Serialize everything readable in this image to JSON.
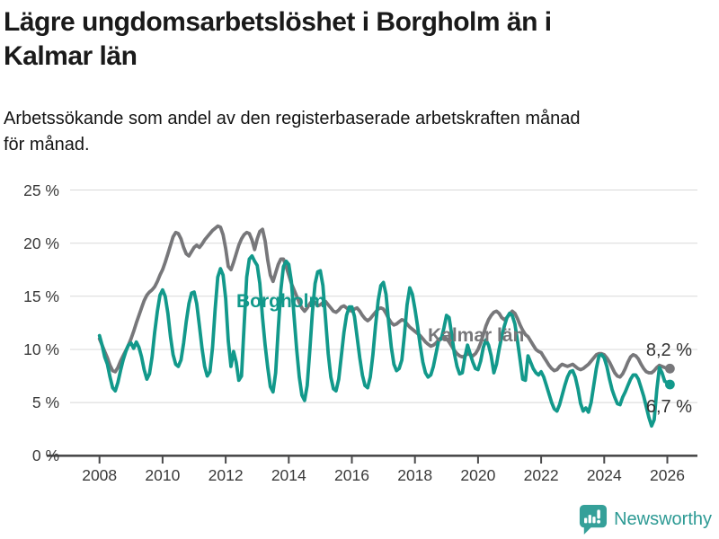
{
  "header": {
    "title": "Lägre ungdomsarbetslöshet i Borgholm än i Kalmar län",
    "title_lines": [
      "Lägre ungdomsarbetslöshet i Borgholm än i",
      "Kalmar län"
    ],
    "subtitle": "Arbetssökande som andel av den registerbaserade arbetskraften månad för månad.",
    "subtitle_lines": [
      "Arbetssökande som andel av den registerbaserade arbetskraften månad",
      "för månad."
    ]
  },
  "chart_data": {
    "type": "line",
    "x_start": "2008-01",
    "x_end": "2026-02",
    "x_frequency": "monthly",
    "xlabels": [
      "2008",
      "2010",
      "2012",
      "2014",
      "2016",
      "2018",
      "2020",
      "2022",
      "2024",
      "2026"
    ],
    "ylabels": [
      "25 %",
      "20 %",
      "15 %",
      "10 %",
      "5 %",
      "0 %"
    ],
    "ylim": [
      0,
      25
    ],
    "grid": "horizontal-only",
    "legend": "inline-labels",
    "series": [
      {
        "name": "Kalmar län",
        "color": "#77777a",
        "end_label": "8,2 %",
        "end_value": 8.2,
        "values": [
          11.0,
          10.4,
          9.8,
          9.2,
          8.5,
          8.0,
          7.9,
          8.3,
          8.9,
          9.4,
          9.9,
          10.4,
          11.0,
          11.7,
          12.5,
          13.2,
          13.9,
          14.6,
          15.1,
          15.4,
          15.6,
          15.9,
          16.4,
          17.0,
          17.5,
          18.2,
          19.0,
          19.8,
          20.6,
          21.0,
          20.9,
          20.4,
          19.6,
          19.0,
          18.8,
          19.2,
          19.6,
          19.8,
          19.6,
          19.9,
          20.3,
          20.6,
          20.9,
          21.2,
          21.4,
          21.6,
          21.5,
          20.8,
          19.5,
          17.8,
          17.5,
          18.2,
          19.0,
          19.8,
          20.4,
          20.8,
          21.0,
          20.9,
          20.3,
          19.4,
          20.4,
          21.1,
          21.3,
          20.2,
          18.4,
          17.0,
          16.4,
          17.2,
          18.0,
          18.5,
          18.5,
          17.8,
          17.0,
          16.2,
          15.6,
          15.0,
          14.4,
          13.9,
          13.6,
          13.9,
          14.3,
          14.6,
          14.4,
          14.1,
          14.2,
          14.4,
          14.5,
          14.2,
          13.9,
          13.6,
          13.5,
          13.7,
          14.0,
          14.1,
          13.9,
          13.7,
          13.6,
          13.8,
          13.9,
          13.6,
          13.2,
          12.9,
          12.7,
          12.9,
          13.2,
          13.5,
          13.8,
          13.9,
          13.8,
          13.4,
          12.9,
          12.5,
          12.3,
          12.4,
          12.6,
          12.8,
          12.7,
          12.4,
          12.1,
          11.9,
          11.7,
          11.5,
          11.3,
          11.0,
          10.7,
          10.5,
          10.3,
          10.4,
          10.6,
          10.9,
          11.1,
          11.2,
          11.0,
          10.7,
          10.3,
          9.9,
          9.6,
          9.4,
          9.3,
          9.4,
          9.6,
          9.5,
          9.4,
          9.6,
          10.0,
          10.6,
          11.4,
          12.2,
          12.8,
          13.2,
          13.5,
          13.6,
          13.4,
          13.0,
          12.8,
          13.0,
          13.3,
          13.6,
          13.4,
          12.9,
          12.3,
          11.8,
          11.4,
          11.2,
          10.8,
          10.4,
          10.0,
          9.8,
          9.7,
          9.3,
          8.9,
          8.5,
          8.2,
          8.0,
          8.1,
          8.4,
          8.6,
          8.5,
          8.4,
          8.5,
          8.6,
          8.4,
          8.2,
          8.1,
          8.2,
          8.4,
          8.6,
          8.9,
          9.2,
          9.5,
          9.6,
          9.6,
          9.5,
          9.2,
          8.8,
          8.3,
          7.8,
          7.5,
          7.4,
          7.7,
          8.2,
          8.8,
          9.3,
          9.5,
          9.4,
          9.1,
          8.6,
          8.2,
          7.9,
          7.8,
          7.8,
          8.0,
          8.3,
          8.5,
          8.4,
          8.3,
          8.2,
          8.2
        ]
      },
      {
        "name": "Borgholm",
        "color": "#12998b",
        "end_label": "6,7 %",
        "end_value": 6.7,
        "values": [
          11.3,
          10.4,
          9.3,
          8.6,
          7.4,
          6.4,
          6.1,
          6.9,
          8.0,
          9.0,
          9.8,
          10.4,
          10.6,
          10.1,
          10.7,
          10.2,
          9.3,
          8.1,
          7.2,
          7.7,
          9.3,
          11.6,
          13.6,
          15.1,
          15.6,
          15.0,
          13.4,
          11.2,
          9.5,
          8.6,
          8.4,
          9.0,
          10.6,
          12.6,
          14.3,
          15.3,
          15.4,
          14.3,
          12.2,
          10.1,
          8.4,
          7.5,
          7.9,
          10.2,
          13.8,
          16.8,
          17.6,
          17.0,
          14.8,
          10.8,
          8.4,
          9.8,
          8.8,
          7.1,
          7.5,
          12.2,
          16.8,
          18.5,
          18.8,
          18.3,
          17.9,
          16.2,
          13.0,
          10.4,
          8.3,
          6.5,
          6.0,
          7.8,
          11.9,
          15.6,
          17.8,
          18.3,
          18.0,
          16.4,
          13.1,
          10.0,
          7.4,
          5.7,
          5.2,
          6.6,
          9.9,
          13.5,
          16.2,
          17.3,
          17.4,
          16.0,
          12.8,
          9.6,
          7.4,
          6.3,
          6.1,
          7.2,
          9.4,
          11.6,
          13.2,
          14.0,
          14.0,
          13.1,
          11.2,
          9.2,
          7.6,
          6.6,
          6.4,
          7.4,
          9.5,
          12.2,
          14.6,
          16.0,
          16.3,
          15.2,
          12.6,
          10.2,
          8.6,
          8.0,
          8.2,
          9.0,
          11.4,
          14.2,
          15.8,
          15.2,
          13.8,
          12.2,
          10.4,
          8.8,
          7.8,
          7.4,
          7.6,
          8.4,
          9.6,
          10.8,
          11.0,
          12.0,
          13.2,
          13.0,
          11.4,
          9.6,
          8.4,
          7.7,
          7.8,
          9.3,
          10.4,
          9.6,
          8.8,
          8.2,
          8.1,
          8.9,
          10.2,
          10.9,
          10.4,
          9.4,
          7.8,
          8.6,
          10.0,
          11.2,
          12.2,
          13.0,
          13.4,
          13.2,
          12.4,
          10.8,
          9.0,
          7.2,
          7.1,
          9.4,
          8.8,
          8.2,
          7.8,
          7.6,
          7.9,
          7.4,
          6.6,
          5.8,
          5.0,
          4.4,
          4.2,
          4.8,
          5.7,
          6.6,
          7.4,
          7.9,
          8.0,
          7.4,
          6.3,
          4.9,
          4.2,
          4.5,
          4.1,
          5.0,
          6.6,
          8.2,
          9.4,
          9.5,
          9.2,
          8.4,
          7.2,
          6.2,
          5.5,
          4.9,
          4.8,
          5.5,
          6.0,
          6.6,
          7.2,
          7.6,
          7.6,
          7.2,
          6.4,
          5.6,
          4.6,
          3.6,
          2.8,
          3.4,
          6.2,
          8.3,
          7.8,
          7.0,
          6.9,
          6.7
        ]
      }
    ]
  },
  "footer": {
    "brand": "Newsworthy",
    "brand_color": "#2d9a94"
  }
}
